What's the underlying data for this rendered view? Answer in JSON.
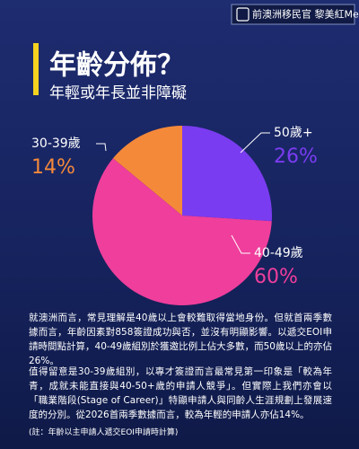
{
  "badge": "前澳洲移民官 黎美紅Mei",
  "chart_data": {
    "type": "pie",
    "title": "年齡分佈？",
    "subtitle": "年輕或年長並非障礙",
    "categories": [
      "50歲+",
      "40-49歲",
      "30-39歲"
    ],
    "values": [
      26,
      60,
      14
    ],
    "value_labels": [
      "26%",
      "60%",
      "14%"
    ],
    "colors": [
      "#7a3cf0",
      "#ef3e9c",
      "#f5893a"
    ]
  },
  "paragraphs": [
    "就澳洲而言，常見理解是40歲以上會較難取得當地身份。但就首兩季數據而言，年齡因素對858簽證成功與否，並沒有明顯影響。以遞交EOI申請時間點計算，40-49歲組別於獲邀比例上佔大多數，而50歲以上的亦佔26%。",
    "值得留意是30-39歲組別，以專才簽證而言最常見第一印象是「較為年青，成就未能直接與40-50+歲的申請人競爭」。但實際上我們亦會以「職業階段(Stage of Career)」特顯申請人與同齡人生涯規劃上發展速度的分別。從2026首兩季數據而言，較為年輕的申請人亦佔14%。"
  ],
  "note": "(註：年齡以主申請人遞交EOI申請時計算)"
}
